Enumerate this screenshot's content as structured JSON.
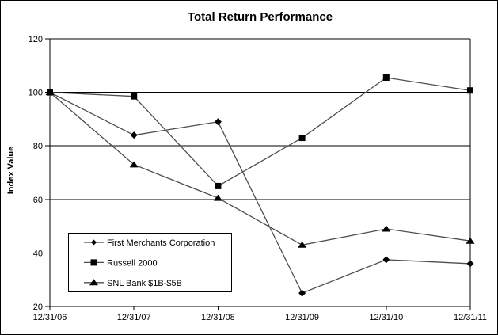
{
  "chart_data": {
    "type": "line",
    "title": "Total Return Performance",
    "xlabel": "",
    "ylabel": "Index Value",
    "categories": [
      "12/31/06",
      "12/31/07",
      "12/31/08",
      "12/31/09",
      "12/31/10",
      "12/31/11"
    ],
    "series": [
      {
        "name": "First Merchants Corporation",
        "marker": "diamond",
        "values": [
          100,
          84,
          89,
          25,
          37.5,
          36
        ]
      },
      {
        "name": "Russell 2000",
        "marker": "square",
        "values": [
          100,
          98.5,
          65,
          83,
          105.5,
          100.7
        ]
      },
      {
        "name": "SNL Bank $1B-$5B",
        "marker": "triangle",
        "values": [
          100,
          73,
          60.5,
          43,
          49,
          44.5
        ]
      }
    ],
    "ylim": [
      20,
      120
    ],
    "yticks": [
      20,
      40,
      60,
      80,
      100,
      120
    ],
    "grid": true,
    "legend_position": "inside-lower-left",
    "colors": {
      "line": "#4d4d4d",
      "marker": "#000000",
      "axis": "#000000",
      "background": "#ffffff",
      "border": "#000000"
    }
  }
}
